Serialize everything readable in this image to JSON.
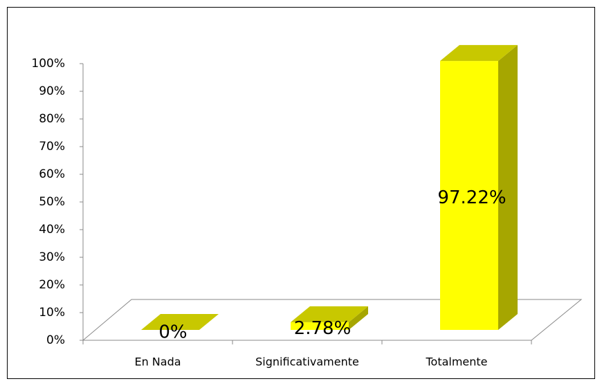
{
  "chart_data": {
    "type": "bar3d",
    "categories": [
      "En Nada",
      "Significativamente",
      "Totalmente"
    ],
    "values": [
      0,
      2.78,
      97.22
    ],
    "value_labels": [
      "0%",
      "2.78%",
      "97.22%"
    ],
    "color": "#ffff00",
    "ylim": [
      0,
      100
    ],
    "yticks": [
      {
        "value": 0,
        "label": "0%"
      },
      {
        "value": 10,
        "label": "10%"
      },
      {
        "value": 20,
        "label": "20%"
      },
      {
        "value": 30,
        "label": "30%"
      },
      {
        "value": 40,
        "label": "40%"
      },
      {
        "value": 50,
        "label": "50%"
      },
      {
        "value": 60,
        "label": "60%"
      },
      {
        "value": 70,
        "label": "70%"
      },
      {
        "value": 80,
        "label": "80%"
      },
      {
        "value": 90,
        "label": "90%"
      },
      {
        "value": 100,
        "label": "100%"
      }
    ]
  }
}
